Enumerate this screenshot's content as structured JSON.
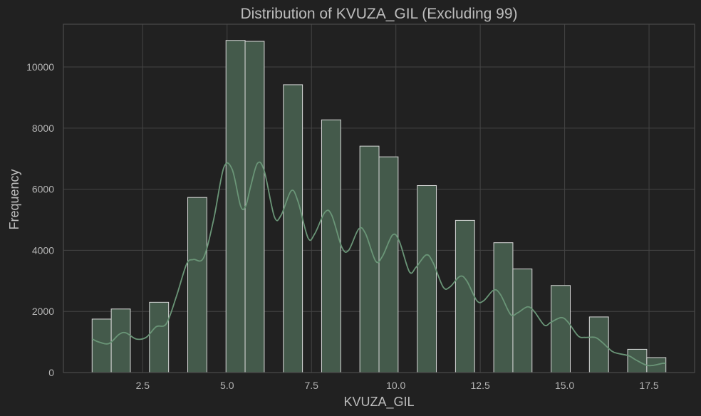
{
  "chart_data": {
    "type": "bar",
    "subtype": "histogram-with-kde",
    "title": "Distribution of KVUZA_GIL (Excluding 99)",
    "xlabel": "KVUZA_GIL",
    "ylabel": "Frequency",
    "xlim": [
      0.15,
      18.85
    ],
    "ylim": [
      0,
      11400
    ],
    "grid": true,
    "x_ticks": [
      2.5,
      5.0,
      7.5,
      10.0,
      12.5,
      15.0,
      17.5
    ],
    "x_tick_labels": [
      "2.5",
      "5.0",
      "7.5",
      "10.0",
      "12.5",
      "15.0",
      "17.5"
    ],
    "y_ticks": [
      0,
      2000,
      4000,
      6000,
      8000,
      10000
    ],
    "y_tick_labels": [
      "0",
      "2000",
      "4000",
      "6000",
      "8000",
      "10000"
    ],
    "bin_width": 0.5667,
    "bins": [
      {
        "x0": 1.0,
        "x1": 1.5667,
        "count": 1750
      },
      {
        "x0": 1.5667,
        "x1": 2.1333,
        "count": 2080
      },
      {
        "x0": 2.7,
        "x1": 3.2667,
        "count": 2300
      },
      {
        "x0": 3.8333,
        "x1": 4.4,
        "count": 5730
      },
      {
        "x0": 4.9667,
        "x1": 5.5333,
        "count": 10870
      },
      {
        "x0": 5.5333,
        "x1": 6.1,
        "count": 10840
      },
      {
        "x0": 6.6667,
        "x1": 7.2333,
        "count": 9420
      },
      {
        "x0": 7.8,
        "x1": 8.3667,
        "count": 8270
      },
      {
        "x0": 8.9333,
        "x1": 9.5,
        "count": 7410
      },
      {
        "x0": 9.5,
        "x1": 10.0667,
        "count": 7060
      },
      {
        "x0": 10.6333,
        "x1": 11.2,
        "count": 6120
      },
      {
        "x0": 11.7667,
        "x1": 12.3333,
        "count": 4980
      },
      {
        "x0": 12.9,
        "x1": 13.4667,
        "count": 4250
      },
      {
        "x0": 13.4667,
        "x1": 14.0333,
        "count": 3390
      },
      {
        "x0": 14.6,
        "x1": 15.1667,
        "count": 2850
      },
      {
        "x0": 15.7333,
        "x1": 16.3,
        "count": 1820
      },
      {
        "x0": 16.8667,
        "x1": 17.4333,
        "count": 760
      },
      {
        "x0": 17.4333,
        "x1": 18.0,
        "count": 490
      }
    ],
    "kde": {
      "x": [
        1.0,
        1.2,
        1.5,
        1.8,
        2.0,
        2.3,
        2.6,
        2.9,
        3.2,
        3.5,
        3.8,
        4.0,
        4.3,
        4.6,
        4.9,
        5.15,
        5.4,
        5.55,
        5.7,
        5.9,
        6.1,
        6.4,
        6.6,
        6.9,
        7.1,
        7.4,
        7.6,
        7.9,
        8.1,
        8.4,
        8.6,
        8.9,
        9.1,
        9.4,
        9.6,
        9.9,
        10.1,
        10.4,
        10.6,
        10.9,
        11.1,
        11.4,
        11.6,
        11.9,
        12.1,
        12.4,
        12.6,
        12.9,
        13.1,
        13.4,
        13.6,
        13.9,
        14.1,
        14.4,
        14.6,
        14.9,
        15.1,
        15.4,
        15.6,
        15.9,
        16.1,
        16.4,
        16.6,
        16.9,
        17.1,
        17.4,
        17.6,
        17.9,
        18.0
      ],
      "y": [
        1100,
        1000,
        950,
        1250,
        1300,
        1100,
        1150,
        1500,
        1600,
        2500,
        3550,
        3700,
        3750,
        5000,
        6700,
        6650,
        5450,
        5450,
        6100,
        6850,
        6600,
        5100,
        5150,
        5950,
        5600,
        4400,
        4550,
        5250,
        5150,
        4100,
        4000,
        4700,
        4550,
        3650,
        3800,
        4500,
        4300,
        3300,
        3450,
        3850,
        3600,
        2800,
        2800,
        3150,
        3000,
        2350,
        2350,
        2700,
        2550,
        1900,
        1950,
        2150,
        2000,
        1550,
        1650,
        1800,
        1650,
        1200,
        1150,
        1150,
        1000,
        700,
        620,
        550,
        420,
        250,
        230,
        300,
        300
      ]
    }
  }
}
